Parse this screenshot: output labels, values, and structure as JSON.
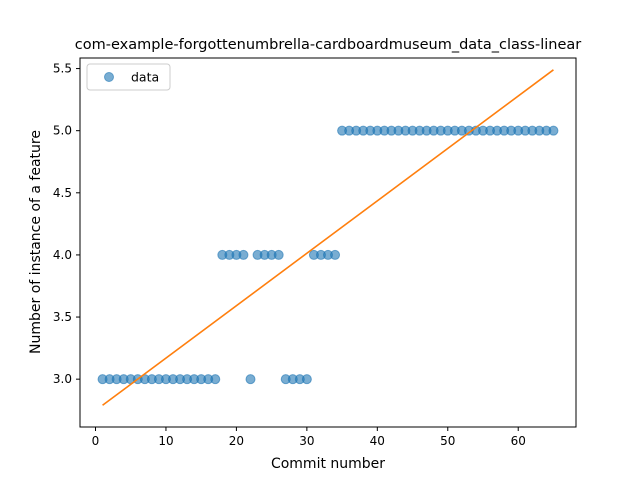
{
  "chart_data": {
    "type": "scatter",
    "title": "com-example-forgottenumbrella-cardboardmuseum_data_class-linear",
    "xlabel": "Commit number",
    "ylabel": "Number of instance of a feature",
    "xlim": [
      -2.2,
      68.2
    ],
    "ylim": [
      2.615,
      5.585
    ],
    "xticks": [
      0,
      10,
      20,
      30,
      40,
      50,
      60
    ],
    "yticks": [
      3.0,
      3.5,
      4.0,
      4.5,
      5.0,
      5.5
    ],
    "xtick_labels": [
      "0",
      "10",
      "20",
      "30",
      "40",
      "50",
      "60"
    ],
    "ytick_labels": [
      "3.0",
      "3.5",
      "4.0",
      "4.5",
      "5.0",
      "5.5"
    ],
    "legend": {
      "placement": "upper-left",
      "entries": [
        "data"
      ]
    },
    "grid": false,
    "series": [
      {
        "name": "data",
        "kind": "scatter",
        "color": "#1f77b4",
        "x": [
          1,
          2,
          3,
          4,
          5,
          6,
          7,
          8,
          9,
          10,
          11,
          12,
          13,
          14,
          15,
          16,
          17,
          18,
          19,
          20,
          21,
          22,
          23,
          24,
          25,
          26,
          27,
          28,
          29,
          30,
          31,
          32,
          33,
          34,
          35,
          36,
          37,
          38,
          39,
          40,
          41,
          42,
          43,
          44,
          45,
          46,
          47,
          48,
          49,
          50,
          51,
          52,
          53,
          54,
          55,
          56,
          57,
          58,
          59,
          60,
          61,
          62,
          63,
          64,
          65
        ],
        "y": [
          3,
          3,
          3,
          3,
          3,
          3,
          3,
          3,
          3,
          3,
          3,
          3,
          3,
          3,
          3,
          3,
          3,
          4,
          4,
          4,
          4,
          3,
          4,
          4,
          4,
          4,
          3,
          3,
          3,
          3,
          4,
          4,
          4,
          4,
          5,
          5,
          5,
          5,
          5,
          5,
          5,
          5,
          5,
          5,
          5,
          5,
          5,
          5,
          5,
          5,
          5,
          5,
          5,
          5,
          5,
          5,
          5,
          5,
          5,
          5,
          5,
          5,
          5,
          5,
          5
        ]
      },
      {
        "kind": "line",
        "color": "#ff7f0e",
        "x": [
          1,
          65
        ],
        "y": [
          2.79,
          5.49
        ]
      }
    ]
  }
}
